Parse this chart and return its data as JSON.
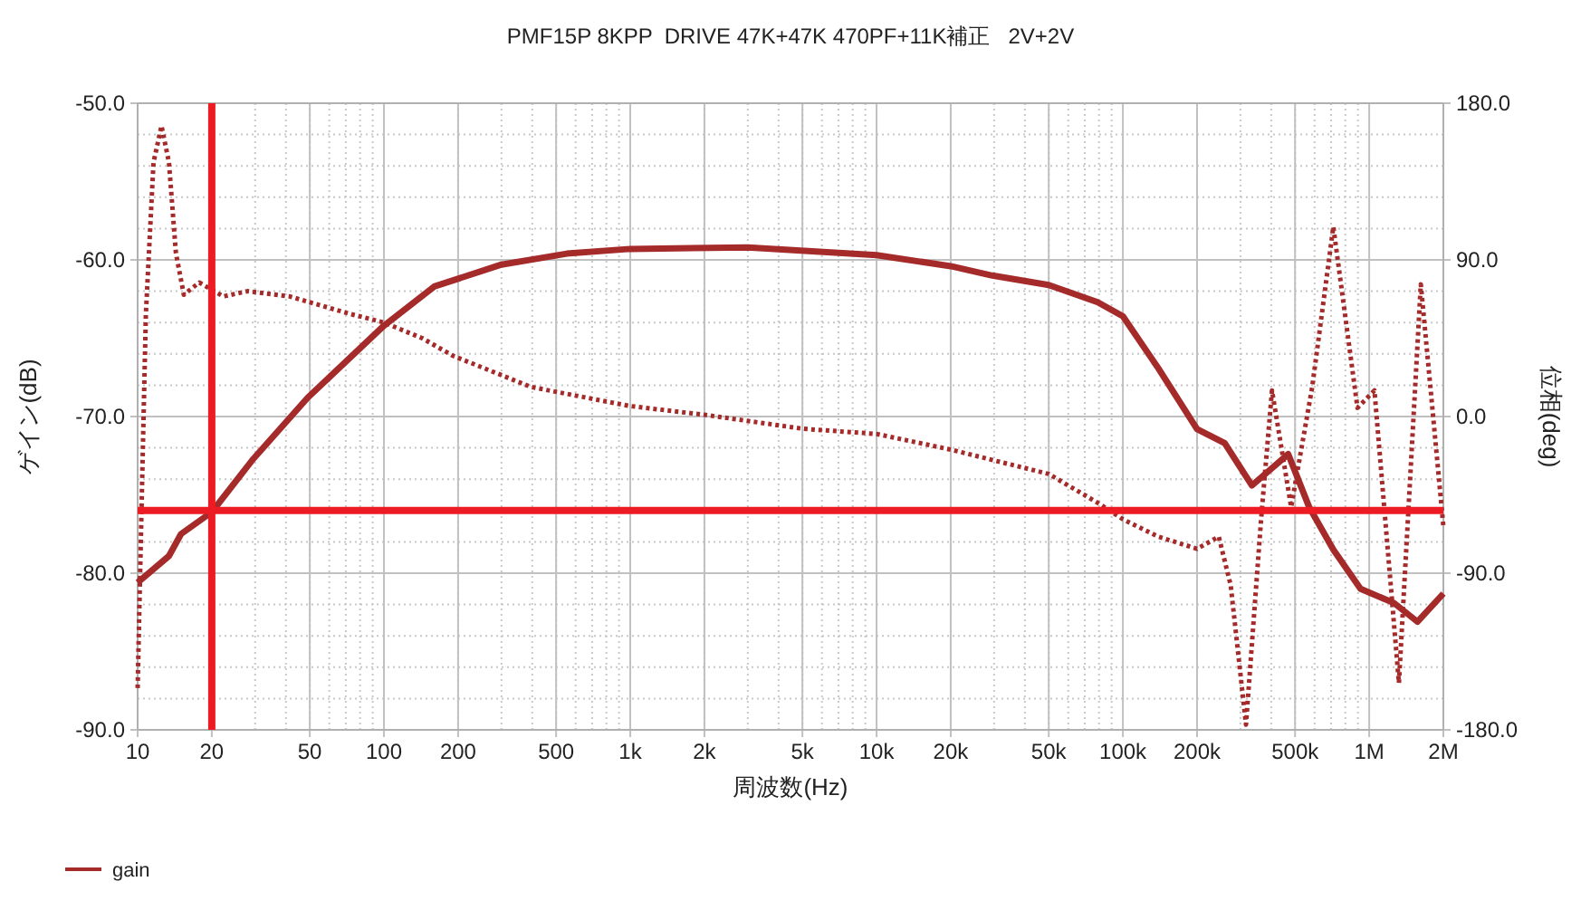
{
  "chart_data": {
    "type": "line",
    "title": "PMF15P 8KPP  DRIVE 47K+47K 470PF+11K補正   2V+2V",
    "xlabel": "周波数(Hz)",
    "ylabel": "ゲイン(dB)",
    "y2label": "位相(deg)",
    "log": "x",
    "grid": true,
    "legend": "bottom left",
    "xlim": [
      10,
      2000000
    ],
    "xticks": [
      10,
      20,
      50,
      100,
      200,
      500,
      {
        "value": 1000,
        "label": "1k"
      },
      {
        "value": 2000,
        "label": "2k"
      },
      {
        "value": 5000,
        "label": "5k"
      },
      {
        "value": 10000,
        "label": "10k"
      },
      {
        "value": 20000,
        "label": "20k"
      },
      {
        "value": 50000,
        "label": "50k"
      },
      {
        "value": 100000,
        "label": "100k"
      },
      {
        "value": 200000,
        "label": "200k"
      },
      {
        "value": 500000,
        "label": "500k"
      },
      {
        "value": 1000000,
        "label": "1M"
      },
      {
        "value": 2000000,
        "label": "2M"
      }
    ],
    "ylim": [
      -90,
      -50
    ],
    "yticks": [
      {
        "value": -90,
        "label": "-90.0"
      },
      {
        "value": -80,
        "label": "-80.0"
      },
      {
        "value": -70,
        "label": "-70.0"
      },
      {
        "value": -60,
        "label": "-60.0"
      },
      {
        "value": -50,
        "label": "-50.0"
      }
    ],
    "y2lim": [
      -180,
      180
    ],
    "y2ticks": [
      {
        "value": -180,
        "label": "-180.0"
      },
      {
        "value": -90,
        "label": "-90.0"
      },
      {
        "value": 0,
        "label": "0.0"
      },
      {
        "value": 90,
        "label": "90.0"
      },
      {
        "value": 180,
        "label": "180.0"
      }
    ],
    "ref_lines": [
      {
        "axis": "y",
        "value": -76,
        "color": "#ed1c24"
      },
      {
        "axis": "x",
        "value": 20,
        "color": "#ed1c24"
      }
    ],
    "series": [
      {
        "name": "gain",
        "color": "#a52a2a",
        "line_style": "solid",
        "x": [
          10,
          13.4,
          15,
          20,
          29.5,
          49,
          100,
          160,
          300,
          553,
          1000,
          3000,
          10000,
          20000,
          29500,
          50000,
          79000,
          100000,
          139000,
          200000,
          259000,
          334000,
          469000,
          571000,
          715000,
          922000,
          1260000,
          1570000,
          2000000
        ],
        "values": [
          -80.6,
          -78.9,
          -77.5,
          -76.1,
          -72.7,
          -68.8,
          -64.2,
          -61.7,
          -60.3,
          -59.6,
          -59.3,
          -59.2,
          -59.7,
          -60.4,
          -61,
          -61.6,
          -62.7,
          -63.6,
          -66.9,
          -70.8,
          -71.7,
          -74.4,
          -72.4,
          -75.8,
          -78.5,
          -81,
          -81.9,
          -83.1,
          -81.3
        ]
      },
      {
        "color": "#a52a2a",
        "axis": "y2",
        "line_style": "dotted",
        "x": [
          10,
          10.4,
          10.8,
          11.6,
          12.5,
          13.4,
          14.3,
          15.4,
          17.8,
          22.3,
          27.9,
          41.4,
          72.7,
          100,
          143,
          190,
          395,
          1000,
          2000,
          5000,
          10000,
          20000,
          50000,
          80000,
          100000,
          139000,
          200000,
          245000,
          274000,
          316000,
          364000,
          403000,
          482000,
          587000,
          715000,
          896000,
          1050000,
          1320000,
          1620000,
          2000000
        ],
        "values": [
          -156,
          -45,
          59,
          146,
          167,
          146,
          94,
          70,
          77,
          69,
          72,
          69,
          59,
          54,
          45,
          35,
          17,
          6,
          1,
          -7,
          -10,
          -19,
          -33,
          -50,
          -59,
          -69,
          -76,
          -69,
          -97,
          -177,
          -59,
          15,
          -52,
          17,
          109,
          5,
          15,
          -153,
          76,
          -63
        ]
      }
    ]
  }
}
